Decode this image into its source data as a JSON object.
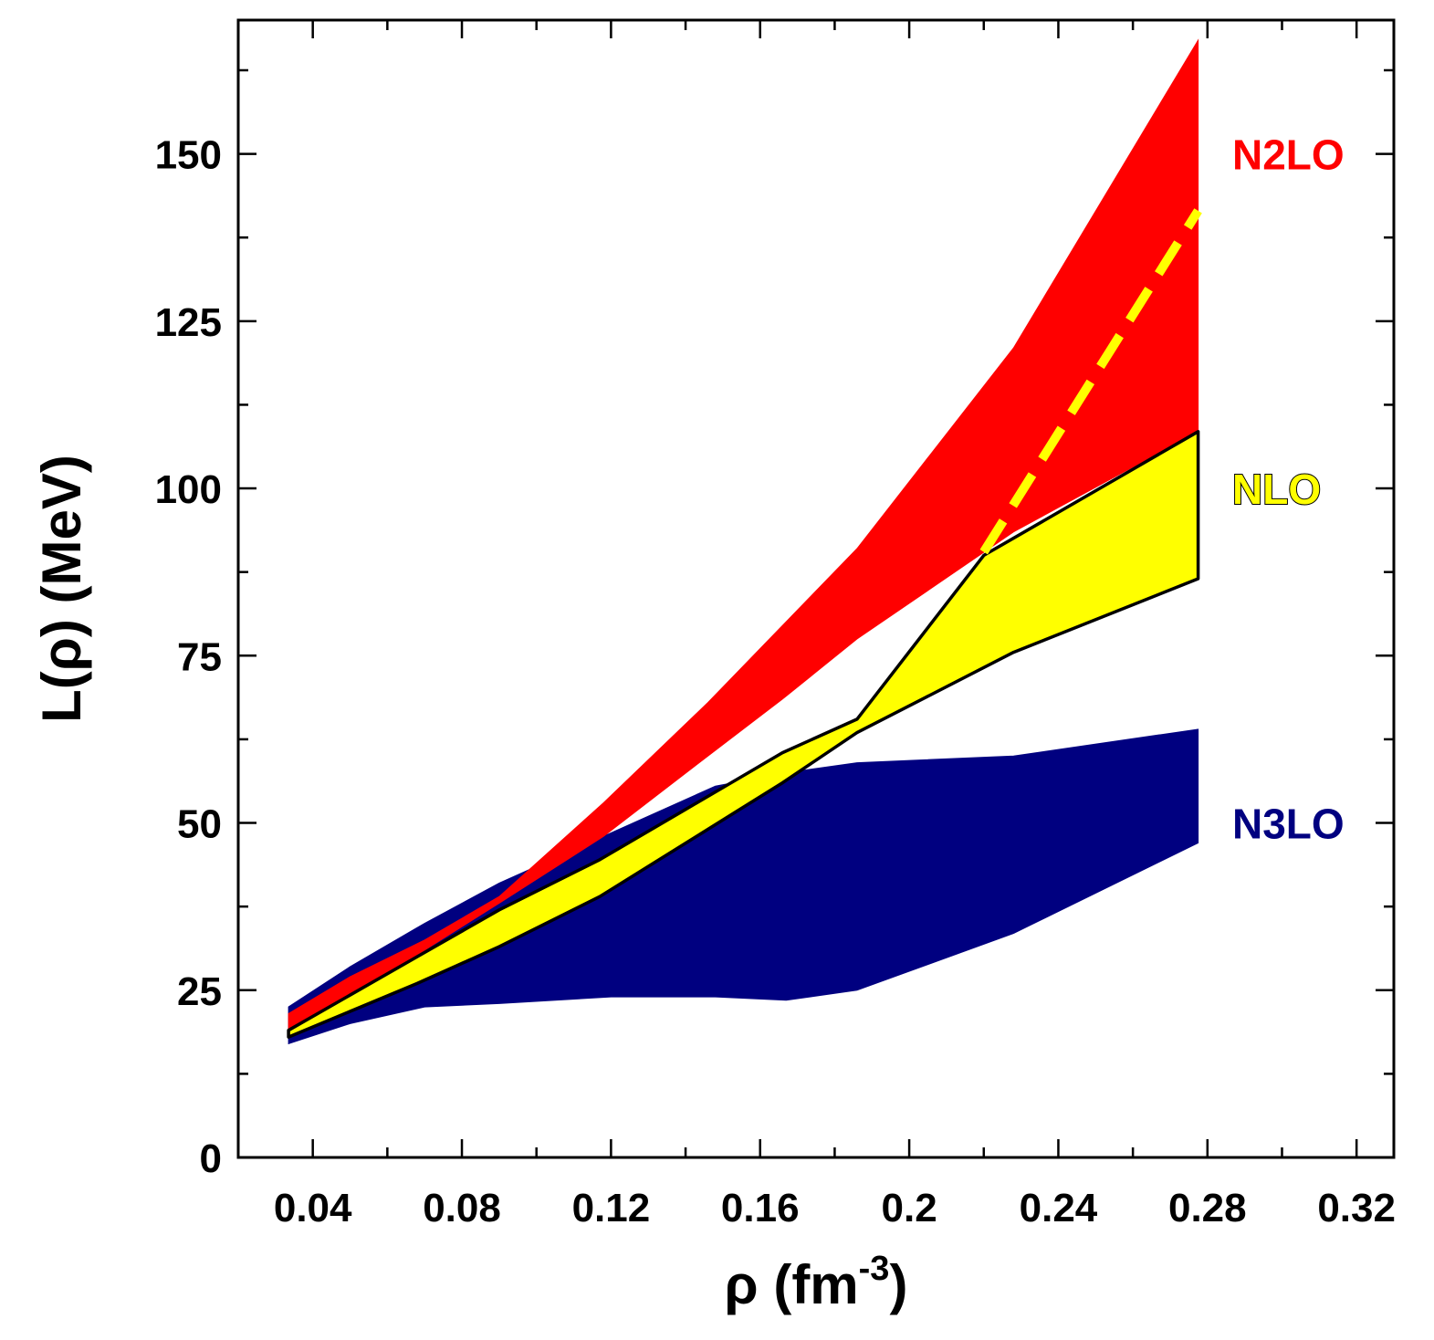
{
  "chart_data": {
    "type": "area",
    "title": "",
    "xlabel": {
      "main": "ρ (fm",
      "sup": "-3",
      "tail": ")"
    },
    "ylabel": "L(ρ) (MeV)",
    "xlim": [
      0.02,
      0.33
    ],
    "ylim": [
      0,
      170
    ],
    "x_ticks": [
      0.04,
      0.08,
      0.12,
      0.16,
      0.2,
      0.24,
      0.28,
      0.32
    ],
    "x_tick_labels": [
      "0.04",
      "0.08",
      "0.12",
      "0.16",
      "0.2",
      "0.24",
      "0.28",
      "0.32"
    ],
    "y_ticks": [
      0,
      25,
      50,
      75,
      100,
      125,
      150
    ],
    "y_tick_labels": [
      "0",
      "25",
      "50",
      "75",
      "100",
      "125",
      "150"
    ],
    "x_minor_step": 0.02,
    "y_minor_step": 12.5,
    "grid": false,
    "series": [
      {
        "name": "N3LO",
        "color": "#000080",
        "outline": false,
        "upper": {
          "x": [
            0.0335,
            0.05,
            0.07,
            0.09,
            0.12,
            0.148,
            0.167,
            0.186,
            0.228,
            0.2775
          ],
          "y": [
            22.5,
            28.5,
            35,
            41,
            48.5,
            55.5,
            57.5,
            59,
            60,
            64
          ]
        },
        "lower": {
          "x": [
            0.0335,
            0.05,
            0.07,
            0.09,
            0.12,
            0.148,
            0.167,
            0.186,
            0.228,
            0.2775
          ],
          "y": [
            17,
            20,
            22.5,
            23,
            24,
            24,
            23.5,
            25,
            33.5,
            47
          ]
        }
      },
      {
        "name": "N2LO",
        "color": "#ff0000",
        "outline": false,
        "upper": {
          "x": [
            0.0335,
            0.05,
            0.07,
            0.09,
            0.118,
            0.146,
            0.166,
            0.186,
            0.228,
            0.2775
          ],
          "y": [
            21.5,
            27,
            32.5,
            39,
            53,
            68,
            79.5,
            91,
            121,
            167
          ]
        },
        "lower": {
          "x": [
            0.0335,
            0.05,
            0.07,
            0.09,
            0.118,
            0.146,
            0.166,
            0.186,
            0.228,
            0.2775
          ],
          "y": [
            18.5,
            24.5,
            31,
            38,
            48,
            60,
            68.5,
            77.5,
            93.5,
            108.5
          ]
        }
      },
      {
        "name": "NLO",
        "color": "#ffff00",
        "outline": true,
        "upper": {
          "x": [
            0.0335,
            0.068,
            0.09,
            0.117,
            0.166,
            0.186,
            0.22,
            0.2775
          ],
          "y": [
            19,
            30,
            37,
            44.5,
            60.5,
            65.5,
            90,
            108.5
          ]
        },
        "lower": {
          "x": [
            0.0335,
            0.068,
            0.09,
            0.117,
            0.166,
            0.186,
            0.228,
            0.2775
          ],
          "y": [
            18,
            26,
            31.5,
            39,
            56,
            63.5,
            75.5,
            86.5
          ]
        }
      }
    ],
    "dashed_line": {
      "color": "#ffff00",
      "x": [
        0.22,
        0.2775
      ],
      "y": [
        90.5,
        141.5
      ]
    },
    "annotations": [
      {
        "text": "N2LO",
        "color": "#ff0000",
        "outline": false,
        "y": 150
      },
      {
        "text": "NLO",
        "color": "#ffff00",
        "outline": true,
        "y": 100
      },
      {
        "text": "N3LO",
        "color": "#000080",
        "outline": false,
        "y": 50
      }
    ]
  }
}
